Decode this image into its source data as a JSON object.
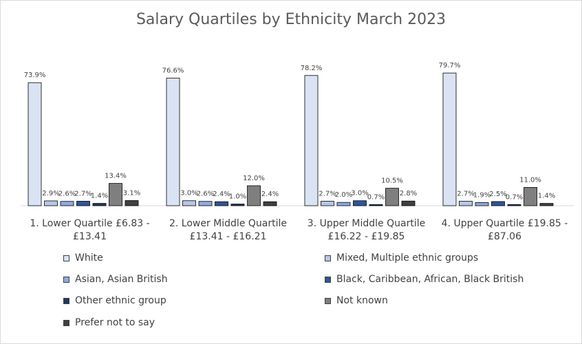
{
  "chart_data": {
    "type": "bar",
    "title": "Salary Quartiles by Ethnicity March 2023",
    "categories": [
      [
        "1. Lower Quartile £6.83 -",
        "£13.41"
      ],
      [
        "2. Lower Middle Quartile",
        "£13.41 - £16.21"
      ],
      [
        "3. Upper Middle Quartile",
        "£16.22 - £19.85"
      ],
      [
        "4. Upper Quartile £19.85 -",
        "£87.06"
      ]
    ],
    "ylim": [
      0,
      85
    ],
    "unit": "%",
    "grid": false,
    "legend_position": "bottom",
    "series": [
      {
        "name": "White",
        "color": "#dae3f3",
        "values": [
          73.9,
          76.6,
          78.2,
          79.7
        ]
      },
      {
        "name": "Mixed, Multiple ethnic groups",
        "color": "#b4c7e7",
        "values": [
          2.9,
          3.0,
          2.7,
          2.7
        ]
      },
      {
        "name": "Asian, Asian British",
        "color": "#8faadc",
        "values": [
          2.6,
          2.6,
          2.0,
          1.9
        ]
      },
      {
        "name": "Black, Caribbean, African, Black British",
        "color": "#2f5597",
        "values": [
          2.7,
          2.4,
          3.0,
          2.5
        ]
      },
      {
        "name": "Other ethnic group",
        "color": "#1f3864",
        "values": [
          1.4,
          1.0,
          0.7,
          0.7
        ]
      },
      {
        "name": "Not known",
        "color": "#7f7f7f",
        "values": [
          13.4,
          12.0,
          10.5,
          11.0
        ]
      },
      {
        "name": "Prefer not to say",
        "color": "#404040",
        "values": [
          3.1,
          2.4,
          2.8,
          1.4
        ]
      }
    ]
  }
}
